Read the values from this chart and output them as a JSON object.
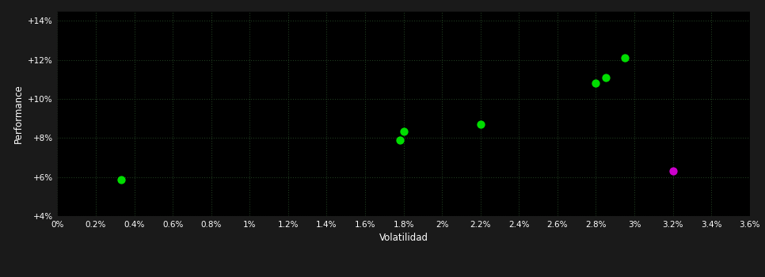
{
  "background_color": "#1a1a1a",
  "plot_bg_color": "#000000",
  "grid_color": "#1e3a1e",
  "text_color": "#ffffff",
  "xlabel": "Volatilidad",
  "ylabel": "Performance",
  "xlim": [
    0.0,
    0.036
  ],
  "ylim": [
    0.04,
    0.145
  ],
  "xtick_vals": [
    0.0,
    0.002,
    0.004,
    0.006,
    0.008,
    0.01,
    0.012,
    0.014,
    0.016,
    0.018,
    0.02,
    0.022,
    0.024,
    0.026,
    0.028,
    0.03,
    0.032,
    0.034,
    0.036
  ],
  "ytick_vals": [
    0.04,
    0.06,
    0.08,
    0.1,
    0.12,
    0.14
  ],
  "points_green": [
    [
      0.0033,
      0.0585
    ],
    [
      0.018,
      0.0835
    ],
    [
      0.0178,
      0.079
    ],
    [
      0.022,
      0.087
    ],
    [
      0.028,
      0.108
    ],
    [
      0.0285,
      0.111
    ],
    [
      0.0295,
      0.121
    ]
  ],
  "points_magenta": [
    [
      0.032,
      0.063
    ]
  ],
  "green_color": "#00dd00",
  "magenta_color": "#cc00cc",
  "marker_size": 55
}
